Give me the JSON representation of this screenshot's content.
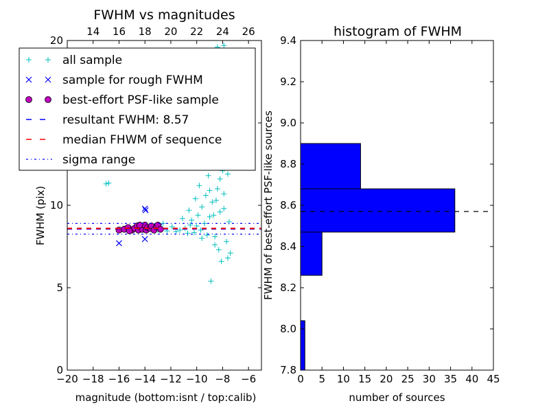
{
  "chart_data": [
    {
      "type": "scatter",
      "title": "FWHM vs magnitudes",
      "xlabel": "magnitude (bottom:isnt / top:calib)",
      "ylabel": "FWHM (pix)",
      "xlim": [
        -20,
        -5
      ],
      "ylim": [
        0,
        20
      ],
      "xticks": [
        -20,
        -18,
        -16,
        -14,
        -12,
        -10,
        -8,
        -6
      ],
      "xtick_labels": [
        "−20",
        "−18",
        "−16",
        "−14",
        "−12",
        "−10",
        "−8",
        "−6"
      ],
      "yticks": [
        0,
        5,
        10,
        15,
        20
      ],
      "ytick_labels": [
        "0",
        "5",
        "10",
        "15",
        "20"
      ],
      "top_axis": {
        "ticks": [
          14,
          16,
          18,
          20,
          22,
          24,
          26
        ],
        "tick_labels": [
          "14",
          "16",
          "18",
          "20",
          "22",
          "24",
          "26"
        ],
        "offset_to_bottom": -32
      },
      "legend": {
        "placement": "upper-left",
        "entries": [
          {
            "label": "all sample",
            "marker": "+",
            "color": "#00bfbf"
          },
          {
            "label": "sample for rough FWHM",
            "marker": "x",
            "color": "#0000ff"
          },
          {
            "label": "best-effort PSF-like sample",
            "marker": "o",
            "color": "#bf00bf"
          },
          {
            "label": "resultant FWHM: 8.57",
            "line": "dashed",
            "color": "#0000ff"
          },
          {
            "label": "median FHWM of sequence",
            "line": "dashed",
            "color": "#ff0000"
          },
          {
            "label": "sigma range",
            "line": "dashdot",
            "color": "#0000ff"
          }
        ]
      },
      "hlines": [
        {
          "y": 8.57,
          "style": "dashed",
          "color": "#0000ff"
        },
        {
          "y": 8.6,
          "style": "dashed",
          "color": "#ff0000"
        },
        {
          "y": 8.9,
          "style": "dashdot",
          "color": "#0000ff"
        },
        {
          "y": 8.25,
          "style": "dashdot",
          "color": "#0000ff"
        }
      ],
      "series": [
        {
          "name": "all sample",
          "marker": "+",
          "color": "#00bfbf",
          "points": [
            [
              -17.0,
              11.3
            ],
            [
              -16.8,
              11.35
            ],
            [
              -13.0,
              8.5
            ],
            [
              -12.6,
              8.9
            ],
            [
              -12.3,
              8.45
            ],
            [
              -11.9,
              8.7
            ],
            [
              -11.6,
              8.4
            ],
            [
              -11.3,
              8.5
            ],
            [
              -11.1,
              9.2
            ],
            [
              -10.9,
              8.6
            ],
            [
              -10.7,
              8.3
            ],
            [
              -10.6,
              9.7
            ],
            [
              -10.5,
              8.8
            ],
            [
              -10.4,
              9.1
            ],
            [
              -10.2,
              8.35
            ],
            [
              -10.1,
              10.4
            ],
            [
              -10.0,
              8.75
            ],
            [
              -9.9,
              9.4
            ],
            [
              -9.8,
              11.2
            ],
            [
              -9.7,
              8.5
            ],
            [
              -9.6,
              9.9
            ],
            [
              -9.5,
              12.4
            ],
            [
              -9.4,
              8.9
            ],
            [
              -9.3,
              10.6
            ],
            [
              -9.2,
              8.2
            ],
            [
              -9.1,
              11.8
            ],
            [
              -9.0,
              9.3
            ],
            [
              -8.9,
              13.1
            ],
            [
              -8.8,
              10.2
            ],
            [
              -8.7,
              12.7
            ],
            [
              -8.6,
              8.1
            ],
            [
              -8.5,
              14.2
            ],
            [
              -8.4,
              11.0
            ],
            [
              -8.3,
              15.6
            ],
            [
              -8.2,
              9.6
            ],
            [
              -8.1,
              13.8
            ],
            [
              -8.0,
              12.1
            ],
            [
              -7.9,
              10.7
            ],
            [
              -7.8,
              14.9
            ],
            [
              -7.7,
              7.8
            ],
            [
              -7.6,
              11.9
            ],
            [
              -7.5,
              9.0
            ],
            [
              -7.4,
              7.1
            ],
            [
              -7.8,
              16.5
            ],
            [
              -8.0,
              17.8
            ],
            [
              -8.2,
              19.0
            ],
            [
              -8.4,
              19.6
            ],
            [
              -7.9,
              19.7
            ],
            [
              -8.1,
              6.6
            ],
            [
              -8.3,
              7.3
            ],
            [
              -8.6,
              7.6
            ],
            [
              -8.9,
              5.4
            ],
            [
              -7.6,
              6.8
            ],
            [
              -7.9,
              9.8
            ],
            [
              -8.2,
              11.6
            ],
            [
              -8.5,
              10.3
            ],
            [
              -8.7,
              9.4
            ],
            [
              -9.0,
              10.9
            ],
            [
              -9.3,
              12.9
            ],
            [
              -9.6,
              8.0
            ]
          ]
        },
        {
          "name": "sample for rough FWHM",
          "marker": "x",
          "color": "#0000ff",
          "points": [
            [
              -16.0,
              7.7
            ],
            [
              -14.0,
              9.8
            ],
            [
              -13.95,
              9.7
            ],
            [
              -14.0,
              7.95
            ],
            [
              -13.4,
              8.6
            ],
            [
              -12.9,
              8.7
            ],
            [
              -15.0,
              8.55
            ],
            [
              -14.5,
              8.65
            ]
          ]
        },
        {
          "name": "best-effort PSF-like sample",
          "marker": "o",
          "color": "#bf00bf",
          "points": [
            [
              -16.0,
              8.5
            ],
            [
              -15.6,
              8.55
            ],
            [
              -15.3,
              8.65
            ],
            [
              -15.0,
              8.5
            ],
            [
              -14.8,
              8.6
            ],
            [
              -14.6,
              8.75
            ],
            [
              -14.5,
              8.5
            ],
            [
              -14.3,
              8.7
            ],
            [
              -14.2,
              8.55
            ],
            [
              -14.0,
              8.8
            ],
            [
              -13.9,
              8.5
            ],
            [
              -13.8,
              8.65
            ],
            [
              -13.6,
              8.6
            ],
            [
              -13.5,
              8.75
            ],
            [
              -13.3,
              8.5
            ],
            [
              -13.1,
              8.7
            ],
            [
              -13.0,
              8.8
            ],
            [
              -12.8,
              8.55
            ],
            [
              -14.4,
              8.8
            ],
            [
              -15.2,
              8.45
            ]
          ]
        }
      ]
    },
    {
      "type": "bar",
      "orientation": "horizontal",
      "title": "histogram of FWHM",
      "xlabel": "number of sources",
      "ylabel": "FWHM of best-effort PSF-like sources",
      "xlim": [
        0,
        45
      ],
      "ylim": [
        7.8,
        9.4
      ],
      "xticks": [
        0,
        5,
        10,
        15,
        20,
        25,
        30,
        35,
        40,
        45
      ],
      "xtick_labels": [
        "0",
        "5",
        "10",
        "15",
        "20",
        "25",
        "30",
        "35",
        "40",
        "45"
      ],
      "yticks": [
        7.8,
        8.0,
        8.2,
        8.4,
        8.6,
        8.8,
        9.0,
        9.2,
        9.4
      ],
      "ytick_labels": [
        "7.8",
        "8.0",
        "8.2",
        "8.4",
        "8.6",
        "8.8",
        "9.0",
        "9.2",
        "9.4"
      ],
      "color": "#0000ff",
      "bins": [
        {
          "from": 7.8,
          "to": 8.04,
          "count": 1
        },
        {
          "from": 8.26,
          "to": 8.47,
          "count": 5
        },
        {
          "from": 8.47,
          "to": 8.68,
          "count": 36
        },
        {
          "from": 8.68,
          "to": 8.9,
          "count": 14
        }
      ],
      "hline": {
        "y": 8.57,
        "style": "dashed",
        "color": "#000000"
      }
    }
  ]
}
